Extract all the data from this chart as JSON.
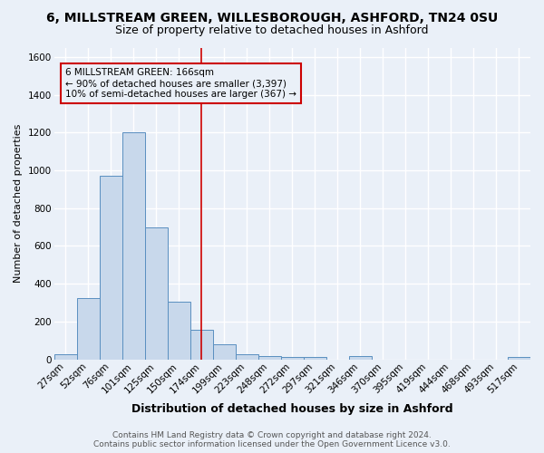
{
  "title": "6, MILLSTREAM GREEN, WILLESBOROUGH, ASHFORD, TN24 0SU",
  "subtitle": "Size of property relative to detached houses in Ashford",
  "xlabel": "Distribution of detached houses by size in Ashford",
  "ylabel": "Number of detached properties",
  "footer_line1": "Contains HM Land Registry data © Crown copyright and database right 2024.",
  "footer_line2": "Contains public sector information licensed under the Open Government Licence v3.0.",
  "bin_labels": [
    "27sqm",
    "52sqm",
    "76sqm",
    "101sqm",
    "125sqm",
    "150sqm",
    "174sqm",
    "199sqm",
    "223sqm",
    "248sqm",
    "272sqm",
    "297sqm",
    "321sqm",
    "346sqm",
    "370sqm",
    "395sqm",
    "419sqm",
    "444sqm",
    "468sqm",
    "493sqm",
    "517sqm"
  ],
  "bar_heights": [
    25,
    325,
    970,
    1200,
    700,
    305,
    155,
    80,
    25,
    15,
    10,
    10,
    0,
    15,
    0,
    0,
    0,
    0,
    0,
    0,
    10
  ],
  "bar_color": "#c8d8eb",
  "bar_edge_color": "#5a8fc0",
  "vline_x_index": 6,
  "vline_color": "#cc0000",
  "annotation_line1": "6 MILLSTREAM GREEN: 166sqm",
  "annotation_line2": "← 90% of detached houses are smaller (3,397)",
  "annotation_line3": "10% of semi-detached houses are larger (367) →",
  "annotation_box_color": "#cc0000",
  "ylim": [
    0,
    1650
  ],
  "yticks": [
    0,
    200,
    400,
    600,
    800,
    1000,
    1200,
    1400,
    1600
  ],
  "background_color": "#eaf0f8",
  "grid_color": "#ffffff",
  "title_fontsize": 10,
  "subtitle_fontsize": 9,
  "xlabel_fontsize": 9,
  "ylabel_fontsize": 8,
  "tick_fontsize": 7.5,
  "footer_fontsize": 6.5,
  "ann_fontsize": 7.5
}
